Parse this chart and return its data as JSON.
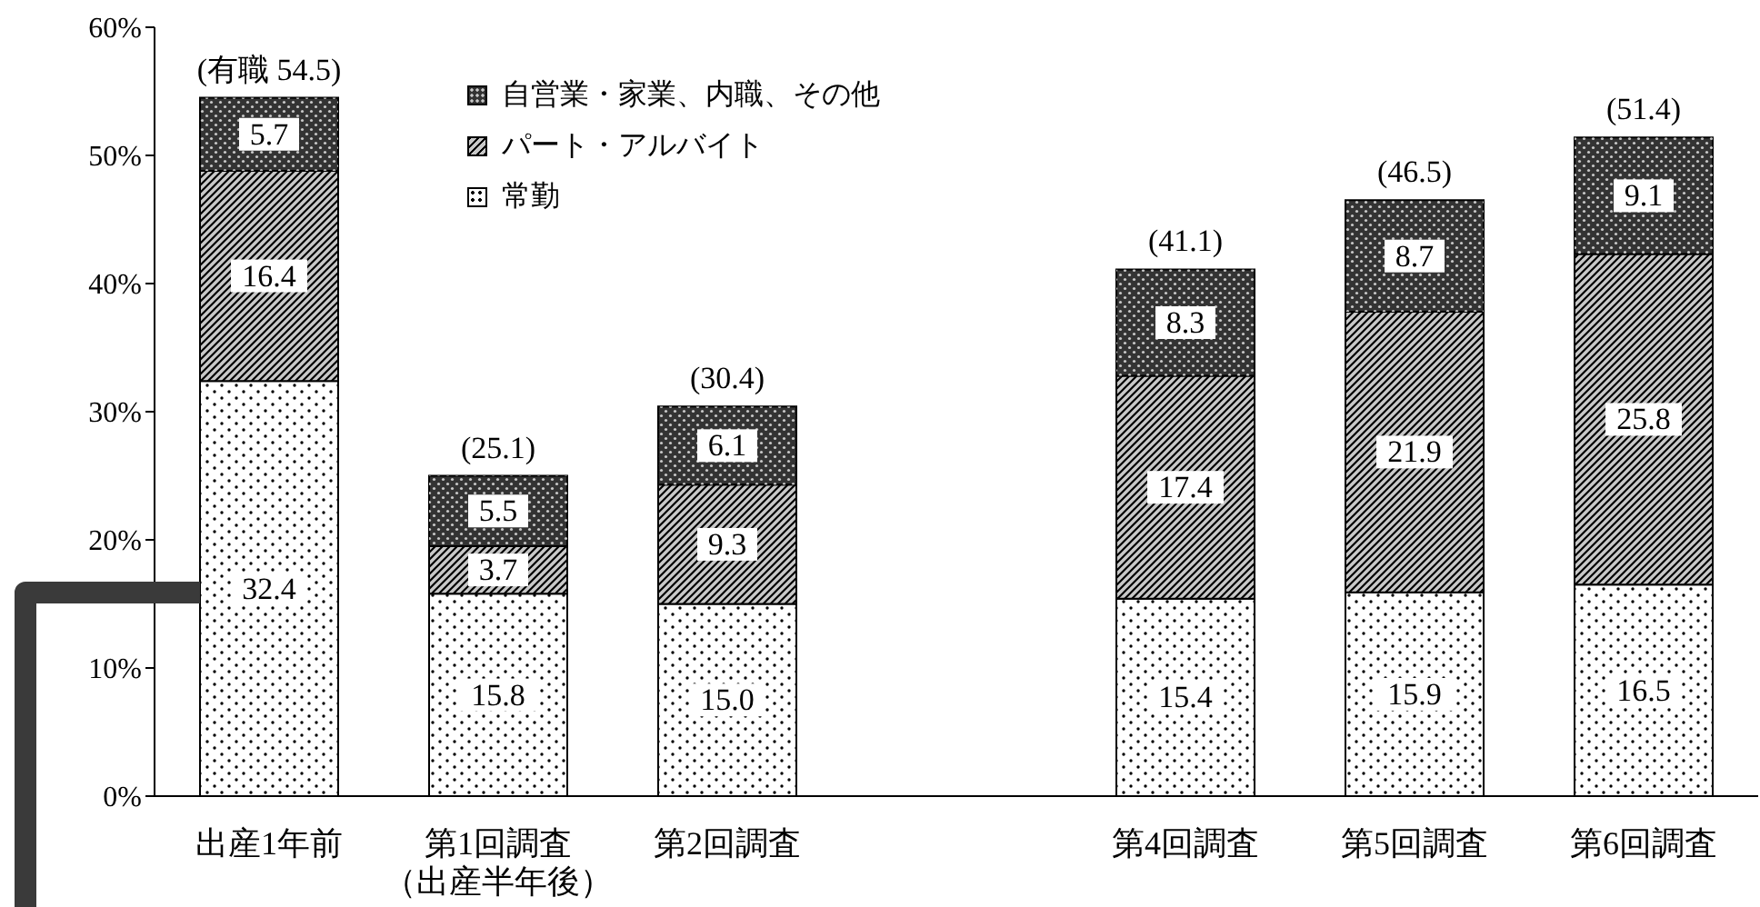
{
  "chart_data": {
    "type": "bar",
    "stacked": true,
    "categories": [
      "出産1年前",
      "第1回調査（出産半年後）",
      "第2回調査",
      null,
      "第4回調査",
      "第5回調査",
      "第6回調査"
    ],
    "series": [
      {
        "name": "常勤",
        "color": "#ffffff",
        "values": [
          32.4,
          15.8,
          15.0,
          null,
          15.4,
          15.9,
          16.5
        ],
        "value_labels": [
          "32.4",
          "15.8",
          "15.0",
          null,
          "15.4",
          "15.9",
          "16.5"
        ]
      },
      {
        "name": "パート・アルバイト",
        "color": "#c8c8c8",
        "values": [
          16.4,
          3.7,
          9.3,
          null,
          17.4,
          21.9,
          25.8
        ],
        "value_labels": [
          "16.4",
          "3.7",
          "9.3",
          null,
          "17.4",
          "21.9",
          "25.8"
        ]
      },
      {
        "name": "自営業・家業、内職、その他",
        "color": "#333333",
        "values": [
          5.7,
          5.5,
          6.1,
          null,
          8.3,
          8.7,
          9.1
        ],
        "value_labels": [
          "5.7",
          "5.5",
          "6.1",
          null,
          "8.3",
          "8.7",
          "9.1"
        ]
      }
    ],
    "totals": [
      "(有職 54.5)",
      "(25.1)",
      "(30.4)",
      null,
      "(41.1)",
      "(46.5)",
      "(51.4)"
    ],
    "ylim": [
      0,
      60
    ],
    "yticks": [
      {
        "value": 0,
        "label": "0%"
      },
      {
        "value": 10,
        "label": "10%"
      },
      {
        "value": 20,
        "label": "20%"
      },
      {
        "value": 30,
        "label": "30%"
      },
      {
        "value": 40,
        "label": "40%"
      },
      {
        "value": 50,
        "label": "50%"
      },
      {
        "value": 60,
        "label": "60%"
      }
    ],
    "legend": "top left"
  }
}
